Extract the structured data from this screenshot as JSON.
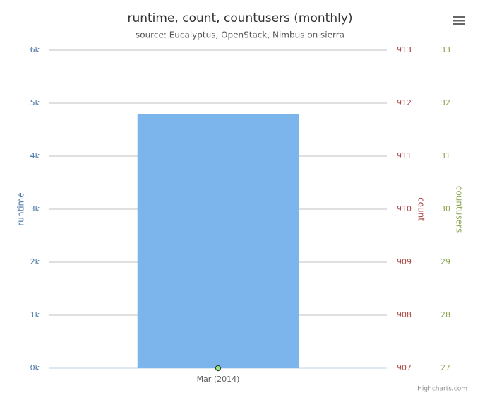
{
  "chart_data": {
    "type": "bar",
    "title": "runtime, count, countusers (monthly)",
    "subtitle": "source: Eucalyptus, OpenStack, Nimbus on sierra",
    "credits": "Highcharts.com",
    "categories": [
      "Mar (2014)"
    ],
    "ylabel": "runtime",
    "y2label": "count",
    "y3label": "countusers",
    "ylim": [
      0,
      6000
    ],
    "yticks": [
      {
        "value": 0,
        "label": "0k"
      },
      {
        "value": 1000,
        "label": "1k"
      },
      {
        "value": 2000,
        "label": "2k"
      },
      {
        "value": 3000,
        "label": "3k"
      },
      {
        "value": 4000,
        "label": "4k"
      },
      {
        "value": 5000,
        "label": "5k"
      },
      {
        "value": 6000,
        "label": "6k"
      }
    ],
    "y2lim": [
      907,
      913
    ],
    "y2ticks": [
      907,
      908,
      909,
      910,
      911,
      912,
      913
    ],
    "y3lim": [
      27,
      33
    ],
    "y3ticks": [
      27,
      28,
      29,
      30,
      31,
      32,
      33
    ],
    "grid": true,
    "series": [
      {
        "name": "runtime",
        "type": "bar",
        "axis": "y",
        "color": "#7cb5ec",
        "label_color": "#4572a7",
        "values": [
          4800
        ]
      },
      {
        "name": "count",
        "type": "point",
        "axis": "y2",
        "color": "#aa4643",
        "label_color": "#aa4643",
        "values": [
          907
        ]
      },
      {
        "name": "countusers",
        "type": "point",
        "axis": "y3",
        "color": "#90ed7d",
        "label_color": "#89a54e",
        "values": [
          27
        ]
      }
    ]
  }
}
